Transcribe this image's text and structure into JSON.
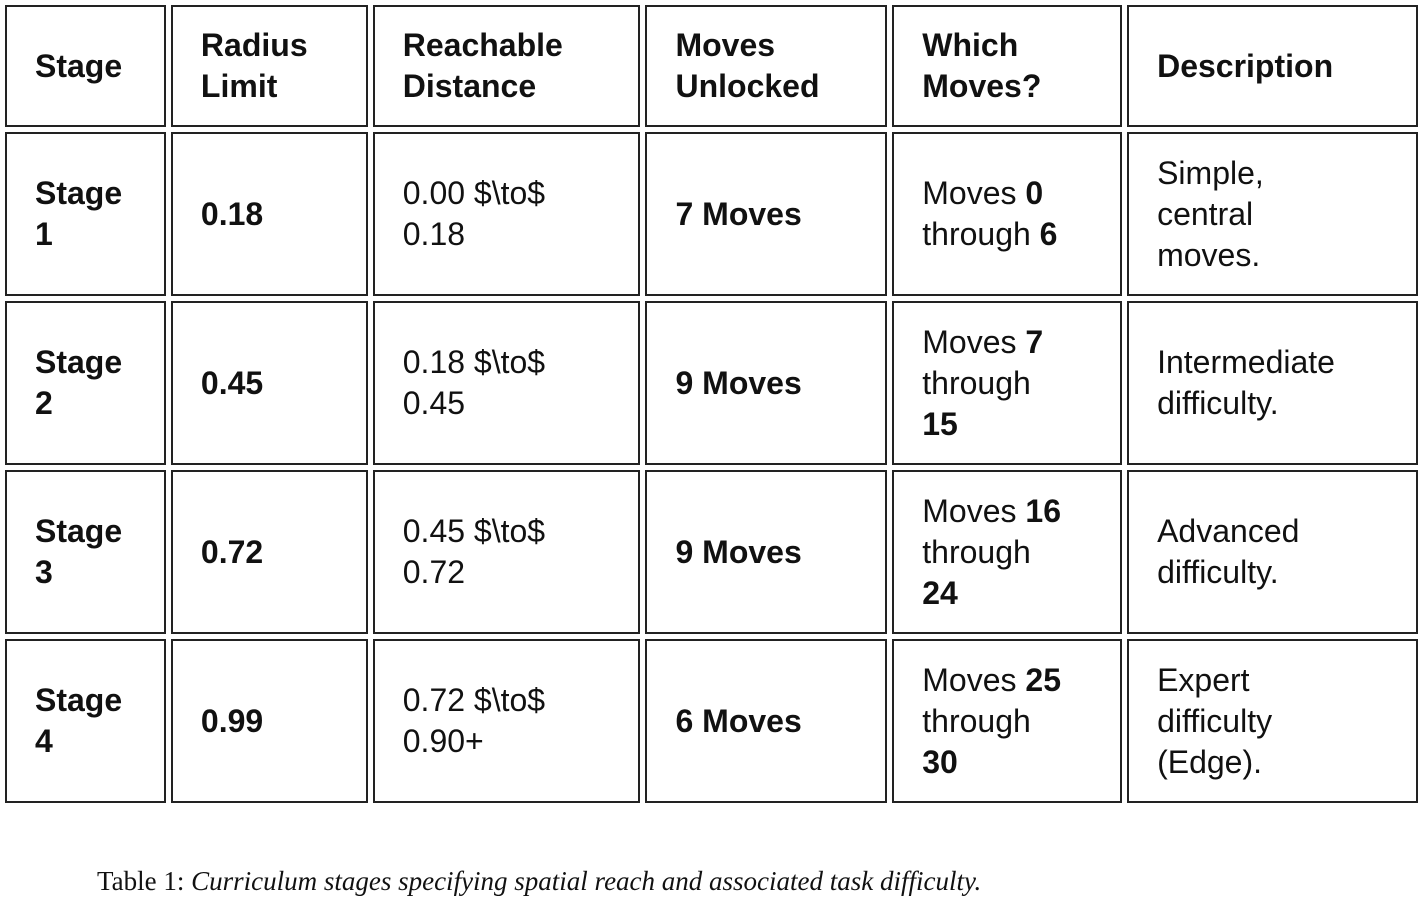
{
  "table": {
    "header": [
      "Stage",
      "Radius Limit",
      "Reachable Distance",
      "Moves Unlocked",
      "Which Moves?",
      "Description"
    ],
    "rows": [
      {
        "stage": "Stage 1",
        "radius": "0.18",
        "distance": "0.00 $\\to$ 0.18",
        "unlocked": "7 Moves",
        "which": {
          "prefix": "Moves",
          "from": "0",
          "middle": "through",
          "to": "6"
        },
        "description": "Simple, central moves."
      },
      {
        "stage": "Stage 2",
        "radius": "0.45",
        "distance": "0.18 $\\to$ 0.45",
        "unlocked": "9 Moves",
        "which": {
          "prefix": "Moves",
          "from": "7",
          "middle": "through",
          "to": "15"
        },
        "description": "Intermediate difficulty."
      },
      {
        "stage": "Stage 3",
        "radius": "0.72",
        "distance": "0.45 $\\to$ 0.72",
        "unlocked": "9 Moves",
        "which": {
          "prefix": "Moves",
          "from": "16",
          "middle": "through",
          "to": "24"
        },
        "description": "Advanced difficulty."
      },
      {
        "stage": "Stage 4",
        "radius": "0.99",
        "distance": "0.72 $\\to$ 0.90+",
        "unlocked": "6 Moves",
        "which": {
          "prefix": "Moves",
          "from": "25",
          "middle": "through",
          "to": "30"
        },
        "description": "Expert difficulty (Edge)."
      }
    ]
  },
  "caption": {
    "label": "Table 1:",
    "text": "Curriculum stages specifying spatial reach and associated task difficulty."
  }
}
